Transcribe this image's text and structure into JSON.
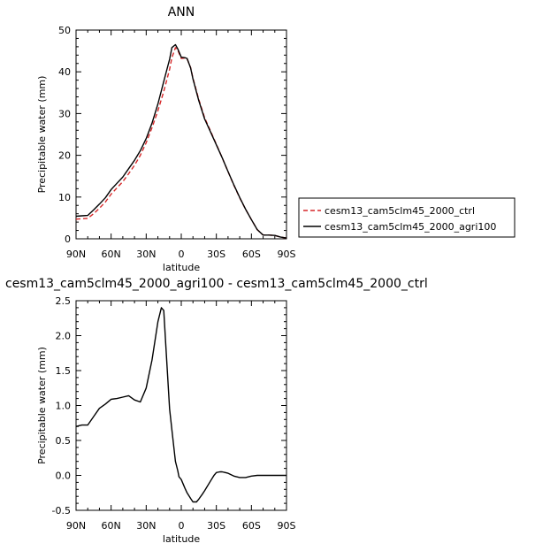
{
  "chart_data": [
    {
      "type": "line",
      "title": "ANN",
      "xlabel": "latitude",
      "ylabel": "Precipitable water (mm)",
      "xlim": [
        90,
        -90
      ],
      "ylim": [
        0,
        50
      ],
      "x_ticks": [
        90,
        60,
        30,
        0,
        -30,
        -60,
        -90
      ],
      "x_tick_labels": [
        "90N",
        "60N",
        "30N",
        "0",
        "30S",
        "60S",
        "90S"
      ],
      "y_ticks": [
        0,
        10,
        20,
        30,
        40,
        50
      ],
      "y_tick_labels": [
        "0",
        "10",
        "20",
        "30",
        "40",
        "50"
      ],
      "grid": false,
      "legend": "right",
      "x": [
        90,
        85,
        80,
        75,
        70,
        65,
        60,
        55,
        50,
        45,
        40,
        35,
        30,
        25,
        20,
        15,
        10,
        8,
        5,
        3,
        0,
        -3,
        -5,
        -8,
        -10,
        -15,
        -20,
        -25,
        -30,
        -35,
        -40,
        -45,
        -50,
        -55,
        -60,
        -65,
        -70,
        -75,
        -80,
        -85,
        -90
      ],
      "series": [
        {
          "name": "cesm13_cam5clm45_2000_ctrl",
          "color": "#d62728",
          "dash": "dashed",
          "values": [
            4.7,
            4.8,
            4.9,
            6.0,
            7.3,
            8.8,
            10.7,
            12.2,
            13.7,
            15.6,
            17.6,
            20.0,
            23.0,
            26.6,
            30.7,
            35.3,
            40.6,
            43.4,
            45.8,
            45.2,
            43.2,
            43.3,
            43.1,
            41.0,
            38.5,
            33.4,
            29.0,
            25.8,
            22.6,
            19.4,
            16.1,
            12.8,
            9.8,
            7.1,
            4.6,
            2.2,
            0.9,
            0.9,
            0.8,
            0.4,
            0.2
          ]
        },
        {
          "name": "cesm13_cam5clm45_2000_agri100",
          "color": "#000000",
          "dash": "solid",
          "values": [
            5.4,
            5.5,
            5.6,
            6.9,
            8.3,
            9.8,
            11.8,
            13.3,
            14.8,
            16.8,
            18.8,
            21.1,
            24.0,
            27.7,
            32.3,
            37.7,
            43.0,
            45.8,
            46.5,
            45.5,
            43.5,
            43.4,
            43.2,
            40.9,
            38.3,
            33.1,
            28.7,
            25.6,
            22.5,
            19.4,
            16.1,
            12.9,
            9.9,
            7.1,
            4.6,
            2.2,
            0.9,
            0.9,
            0.8,
            0.4,
            0.2
          ]
        }
      ]
    },
    {
      "type": "line",
      "title": "cesm13_cam5clm45_2000_agri100 - cesm13_cam5clm45_2000_ctrl",
      "xlabel": "latitude",
      "ylabel": "Precipitable water (mm)",
      "xlim": [
        90,
        -90
      ],
      "ylim": [
        -0.5,
        2.5
      ],
      "x_ticks": [
        90,
        60,
        30,
        0,
        -30,
        -60,
        -90
      ],
      "x_tick_labels": [
        "90N",
        "60N",
        "30N",
        "0",
        "30S",
        "60S",
        "90S"
      ],
      "y_ticks": [
        -0.5,
        0,
        0.5,
        1,
        1.5,
        2,
        2.5
      ],
      "y_tick_labels": [
        "-0.5",
        "0.0",
        "0.5",
        "1.0",
        "1.5",
        "2.0",
        "2.5"
      ],
      "grid": false,
      "x": [
        90,
        85,
        80,
        75,
        70,
        65,
        60,
        55,
        50,
        45,
        40,
        35,
        30,
        25,
        20,
        17,
        15,
        13,
        10,
        8,
        5,
        3,
        2,
        0,
        -3,
        -5,
        -8,
        -10,
        -13,
        -15,
        -18,
        -20,
        -25,
        -28,
        -30,
        -33,
        -35,
        -40,
        -45,
        -50,
        -55,
        -60,
        -65,
        -70,
        -75,
        -80,
        -85,
        -90
      ],
      "series": [
        {
          "name": "",
          "color": "#000000",
          "values": [
            0.7,
            0.72,
            0.72,
            0.84,
            0.96,
            1.02,
            1.09,
            1.1,
            1.12,
            1.14,
            1.08,
            1.05,
            1.25,
            1.65,
            2.2,
            2.4,
            2.36,
            1.8,
            0.95,
            0.65,
            0.2,
            0.07,
            -0.02,
            -0.06,
            -0.18,
            -0.25,
            -0.33,
            -0.38,
            -0.38,
            -0.34,
            -0.27,
            -0.22,
            -0.08,
            0.0,
            0.04,
            0.05,
            0.05,
            0.03,
            -0.01,
            -0.03,
            -0.03,
            -0.01,
            0.0,
            0.0,
            0.0,
            0.0,
            0.0,
            0.0
          ]
        }
      ]
    }
  ]
}
